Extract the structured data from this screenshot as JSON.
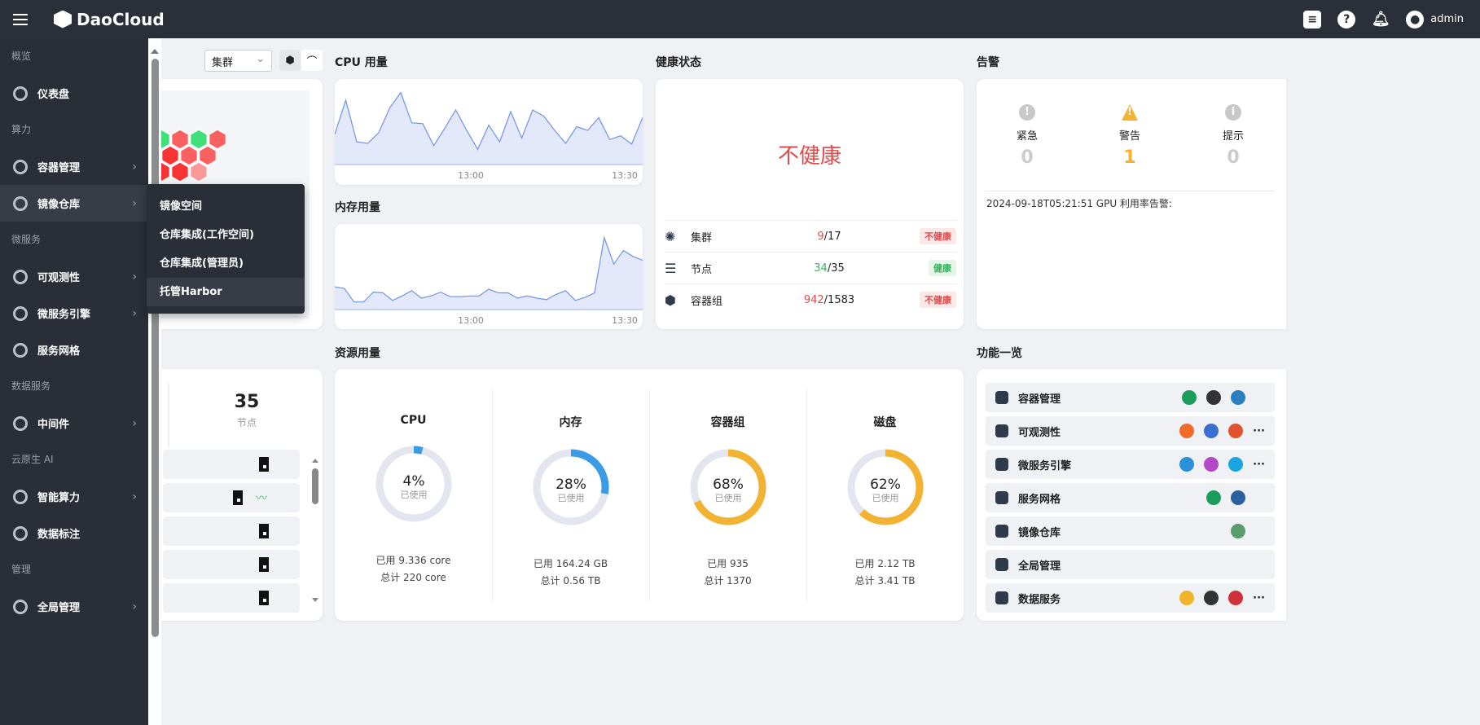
{
  "header": {
    "brand": "DaoCloud",
    "user": "admin",
    "icons": [
      "message-icon",
      "help-icon",
      "bell-icon",
      "user-avatar-icon"
    ]
  },
  "sidebar": {
    "sections": [
      {
        "label": "概览",
        "items": [
          {
            "label": "仪表盘",
            "icon": "bar-chart-icon"
          }
        ]
      },
      {
        "label": "算力",
        "items": [
          {
            "label": "容器管理",
            "icon": "container-icon"
          },
          {
            "label": "镜像仓库",
            "icon": "registry-icon",
            "active": true
          }
        ]
      },
      {
        "label": "微服务",
        "items": [
          {
            "label": "可观测性",
            "icon": "observability-icon"
          },
          {
            "label": "微服务引擎",
            "icon": "engine-icon"
          },
          {
            "label": "服务网格",
            "icon": "mesh-icon"
          }
        ]
      },
      {
        "label": "数据服务",
        "items": [
          {
            "label": "中间件",
            "icon": "middleware-icon"
          }
        ]
      },
      {
        "label": "云原生 AI",
        "items": [
          {
            "label": "智能算力",
            "icon": "ai-icon"
          },
          {
            "label": "数据标注",
            "icon": "label-icon"
          }
        ]
      },
      {
        "label": "管理",
        "items": [
          {
            "label": "全局管理",
            "icon": "globe-icon"
          }
        ]
      }
    ],
    "flyout": [
      "镜像空间",
      "仓库集成(工作空间)",
      "仓库集成(管理员)",
      "托管Harbor"
    ]
  },
  "cluster_panel": {
    "select_value": "集群",
    "nodes_count": "35",
    "nodes_label": "节点"
  },
  "cpu_chart": {
    "title": "CPU 用量",
    "x_ticks": [
      "13:00",
      "13:30"
    ],
    "values": [
      40,
      85,
      30,
      28,
      42,
      75,
      95,
      55,
      54,
      25,
      48,
      72,
      45,
      20,
      52,
      30,
      70,
      35,
      72,
      64,
      45,
      28,
      50,
      45,
      62,
      33,
      38,
      27,
      62
    ]
  },
  "mem_chart": {
    "title": "内存用量",
    "x_ticks": [
      "13:00",
      "13:30"
    ],
    "values": [
      30,
      28,
      10,
      10,
      23,
      22,
      12,
      18,
      25,
      15,
      18,
      23,
      17,
      17,
      18,
      18,
      27,
      22,
      22,
      15,
      18,
      15,
      13,
      20,
      25,
      12,
      16,
      22,
      95,
      60,
      78,
      70,
      65
    ]
  },
  "health": {
    "title": "健康状态",
    "status": "不健康",
    "rows": [
      {
        "name": "集群",
        "icon": "cluster-icon",
        "bad": "9",
        "total": "/17",
        "badge": "不健康",
        "ok": false
      },
      {
        "name": "节点",
        "icon": "server-icon",
        "bad": "34",
        "total": "/35",
        "badge": "健康",
        "ok": true
      },
      {
        "name": "容器组",
        "icon": "pods-icon",
        "bad": "942",
        "total": "/1583",
        "badge": "不健康",
        "ok": false
      }
    ]
  },
  "alerts": {
    "title": "告警",
    "levels": [
      {
        "label": "紧急",
        "count": "0"
      },
      {
        "label": "警告",
        "count": "1"
      },
      {
        "label": "提示",
        "count": "0"
      }
    ],
    "latest": "2024-09-18T05:21:51 GPU 利用率告警:"
  },
  "resources": {
    "title": "资源用量",
    "used_label": "已使用",
    "items": [
      {
        "name": "CPU",
        "percent": 4,
        "pct_text": "4%",
        "used": "已用 9.336 core",
        "total": "总计 220 core",
        "color": "#3b9be6"
      },
      {
        "name": "内存",
        "percent": 28,
        "pct_text": "28%",
        "used": "已用 164.24 GB",
        "total": "总计 0.56 TB",
        "color": "#3b9be6"
      },
      {
        "name": "容器组",
        "percent": 68,
        "pct_text": "68%",
        "used": "已用 935",
        "total": "总计 1370",
        "color": "#f2b232"
      },
      {
        "name": "磁盘",
        "percent": 62,
        "pct_text": "62%",
        "used": "已用 2.12 TB",
        "total": "总计 3.41 TB",
        "color": "#f2b232"
      }
    ]
  },
  "features": {
    "title": "功能一览",
    "more": "···",
    "rows": [
      {
        "name": "容器管理",
        "apps": [
          "#1a9c5a",
          "#333",
          "#2a7fc0"
        ],
        "more": false
      },
      {
        "name": "可观测性",
        "apps": [
          "#f06a2a",
          "#3a6fd0",
          "#e0532f"
        ],
        "more": true
      },
      {
        "name": "微服务引擎",
        "apps": [
          "#2a90d8",
          "#b44ac8",
          "#1aa4e0"
        ],
        "more": true
      },
      {
        "name": "服务网格",
        "apps": [
          "#1a9c5a",
          "#2a5fa0"
        ],
        "more": false
      },
      {
        "name": "镜像仓库",
        "apps": [
          "#5a9c6a"
        ],
        "more": false
      },
      {
        "name": "全局管理",
        "apps": [],
        "more": false
      },
      {
        "name": "数据服务",
        "apps": [
          "#f0b42a",
          "#333",
          "#d0303a"
        ],
        "more": true
      }
    ]
  },
  "colors": {
    "bad": "#e04b4b",
    "good": "#34b35a",
    "warn": "#f2b232",
    "line": "#6f93e8"
  }
}
